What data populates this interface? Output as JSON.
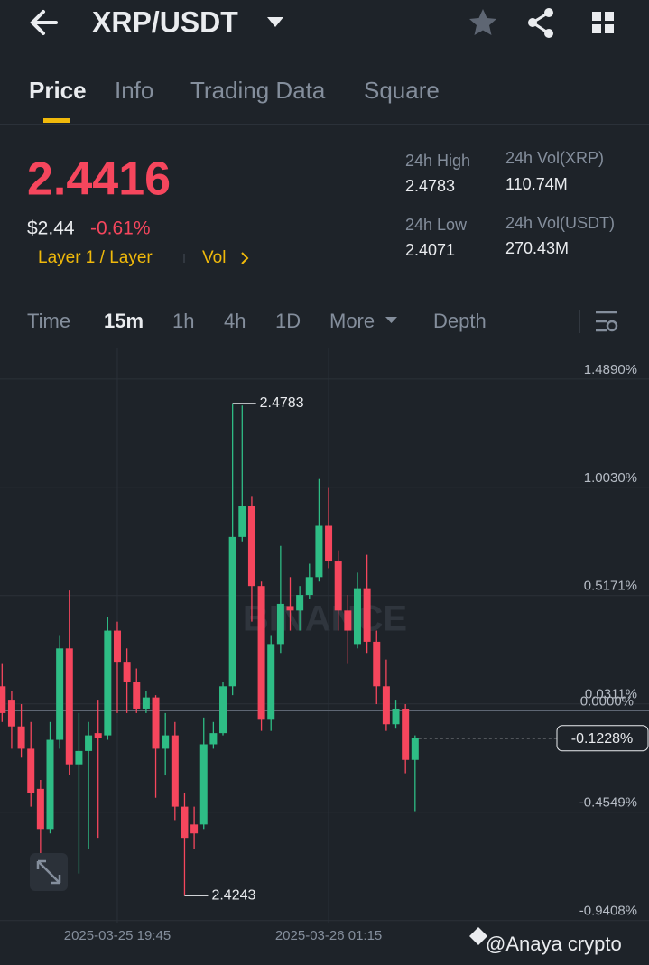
{
  "header": {
    "pair": "XRP/USDT"
  },
  "tabs": [
    "Price",
    "Info",
    "Trading Data",
    "Square"
  ],
  "price": {
    "last": "2.4416",
    "usd": "$2.44",
    "change": "-0.61%",
    "tag": "Layer 1 / Layer",
    "vol": "Vol"
  },
  "stats": [
    {
      "label": "24h High",
      "value": "2.4783"
    },
    {
      "label": "24h Vol(XRP)",
      "value": "110.74M"
    },
    {
      "label": "24h Low",
      "value": "2.4071"
    },
    {
      "label": "24h Vol(USDT)",
      "value": "270.43M"
    }
  ],
  "intervals": [
    "Time",
    "15m",
    "1h",
    "4h",
    "1D",
    "More",
    "Depth"
  ],
  "watermark": "BINANCE",
  "credit": "@Anaya crypto",
  "chart_data": {
    "type": "candlestick",
    "categories": [
      null,
      null,
      null,
      null,
      null,
      null,
      null,
      null,
      null,
      null,
      null,
      null,
      "2025-03-25 19:45",
      null,
      null,
      null,
      null,
      null,
      null,
      null,
      null,
      null,
      null,
      null,
      null,
      null,
      null,
      null,
      null,
      null,
      null,
      null,
      null,
      null,
      "2025-03-26 01:15",
      null,
      null,
      null,
      null,
      null,
      null,
      null,
      null,
      null
    ],
    "open": [
      0.11,
      0.05,
      -0.07,
      -0.17,
      -0.35,
      -0.53,
      -0.13,
      0.28,
      -0.24,
      -0.18,
      -0.1,
      -0.11,
      0.36,
      0.22,
      0.13,
      0.01,
      0.06,
      -0.17,
      -0.11,
      -0.43,
      -0.51,
      -0.51,
      -0.15,
      -0.1,
      0.11,
      0.78,
      0.92,
      0.56,
      -0.04,
      0.3,
      0.47,
      0.45,
      0.52,
      0.6,
      0.83,
      0.67,
      0.45,
      0.3,
      0.55,
      0.31,
      0.11,
      -0.06,
      0.01,
      -0.22
    ],
    "high": [
      0.21,
      0.09,
      0.03,
      -0.05,
      -0.31,
      -0.05,
      0.34,
      0.54,
      -0.01,
      -0.05,
      0.05,
      0.42,
      0.4,
      0.28,
      0.19,
      0.09,
      0.07,
      -0.01,
      -0.05,
      -0.37,
      -0.43,
      -0.03,
      -0.05,
      0.13,
      1.38,
      1.37,
      0.96,
      0.58,
      0.34,
      0.74,
      0.6,
      0.56,
      0.66,
      1.04,
      1.0,
      0.72,
      0.52,
      0.62,
      0.7,
      0.36,
      0.23,
      0.05,
      0.03,
      -0.11
    ],
    "low": [
      -0.05,
      -0.17,
      -0.21,
      -0.43,
      -0.64,
      -0.55,
      -0.17,
      -0.29,
      -0.73,
      -0.62,
      -0.57,
      -0.13,
      -0.01,
      -0.01,
      -0.01,
      -0.01,
      -0.39,
      -0.29,
      -0.49,
      -0.83,
      -0.62,
      -0.53,
      -0.17,
      -0.11,
      0.07,
      0.76,
      0.4,
      -0.09,
      -0.09,
      0.26,
      0.36,
      0.36,
      0.5,
      0.58,
      0.64,
      0.36,
      0.21,
      0.28,
      0.26,
      0.03,
      -0.09,
      -0.08,
      -0.28,
      -0.45
    ],
    "close": [
      -0.01,
      -0.07,
      -0.17,
      -0.37,
      -0.53,
      -0.13,
      0.28,
      -0.24,
      -0.18,
      -0.11,
      -0.12,
      0.36,
      0.22,
      0.13,
      0.01,
      0.06,
      -0.17,
      -0.11,
      -0.43,
      -0.57,
      -0.55,
      -0.15,
      -0.1,
      0.11,
      0.78,
      0.92,
      0.56,
      -0.04,
      0.3,
      0.48,
      0.45,
      0.52,
      0.6,
      0.83,
      0.67,
      0.45,
      0.36,
      0.55,
      0.31,
      0.11,
      -0.06,
      0.01,
      -0.22,
      -0.12
    ],
    "up_color": "#2ebd85",
    "down_color": "#f6465d",
    "ylim": [
      -0.95,
      1.63
    ],
    "yticks": [
      {
        "value": 1.489,
        "label": "1.4890%"
      },
      {
        "value": 1.003,
        "label": "1.0030%"
      },
      {
        "value": 0.5171,
        "label": "0.5171%"
      },
      {
        "value": 0.0311,
        "label": "0.0311%"
      },
      {
        "value": -0.4549,
        "label": "-0.4549%"
      },
      {
        "value": -0.9408,
        "label": "-0.9408%"
      }
    ],
    "zero_line": {
      "value": 0,
      "label": "0.0000%"
    },
    "current": {
      "value": -0.1228,
      "label": "-0.1228%"
    },
    "max_label": "2.4783",
    "min_label": "2.4243",
    "grid": true
  }
}
